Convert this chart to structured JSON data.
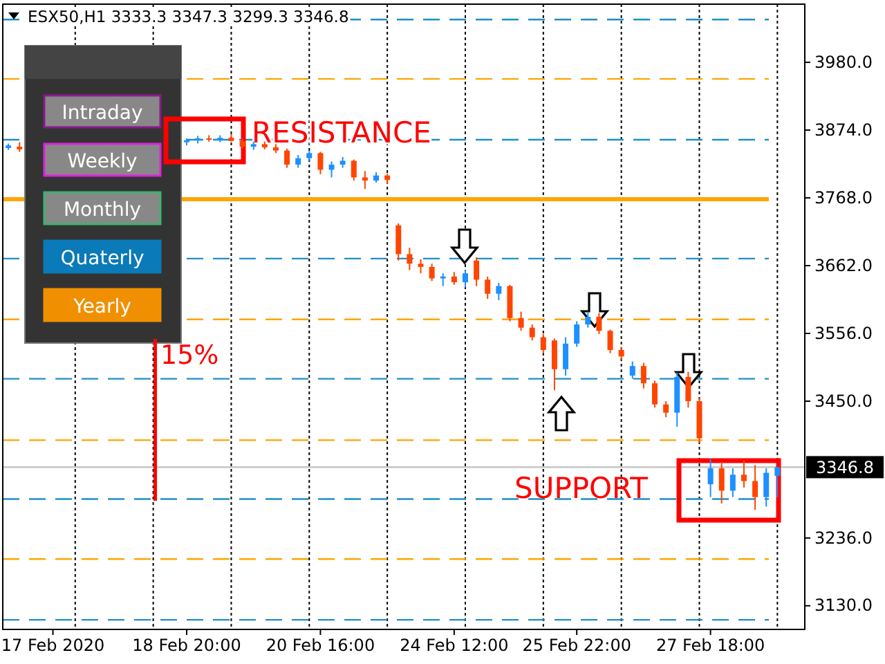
{
  "chart_data": {
    "type": "candlestick",
    "title": "ESX50,H1  3333.3 3347.3 3299.3 3346.8",
    "categories": [
      null,
      null,
      null,
      null,
      "17 Feb 2020",
      null,
      null,
      null,
      null,
      null,
      null,
      null,
      null,
      null,
      null,
      null,
      "18 Feb 20:00",
      null,
      null,
      null,
      null,
      null,
      null,
      null,
      null,
      null,
      null,
      null,
      "20 Feb 16:00",
      null,
      null,
      null,
      null,
      null,
      null,
      null,
      null,
      null,
      null,
      null,
      "24 Feb 12:00",
      null,
      null,
      null,
      null,
      null,
      null,
      null,
      null,
      null,
      null,
      "25 Feb 22:00",
      null,
      null,
      null,
      null,
      null,
      null,
      null,
      null,
      null,
      null,
      null,
      "27 Feb 18:00",
      null,
      null,
      null,
      null,
      null,
      null
    ],
    "ohlc": [
      [
        3846,
        3853,
        3843,
        3850
      ],
      [
        3848,
        3855,
        3840,
        3844
      ],
      null,
      null,
      null,
      null,
      null,
      null,
      null,
      null,
      null,
      null,
      null,
      null,
      null,
      null,
      [
        3855,
        3861,
        3850,
        3858
      ],
      [
        3858,
        3865,
        3853,
        3861
      ],
      [
        3861,
        3866,
        3856,
        3859
      ],
      [
        3859,
        3866,
        3855,
        3862
      ],
      [
        3862,
        3868,
        3856,
        3857
      ],
      [
        3857,
        3860,
        3845,
        3848
      ],
      [
        3848,
        3856,
        3843,
        3852
      ],
      [
        3852,
        3856,
        3844,
        3847
      ],
      [
        3847,
        3852,
        3838,
        3842
      ],
      [
        3842,
        3845,
        3815,
        3820
      ],
      [
        3820,
        3835,
        3815,
        3830
      ],
      [
        3830,
        3842,
        3826,
        3838
      ],
      [
        3838,
        3840,
        3805,
        3812
      ],
      [
        3812,
        3825,
        3800,
        3820
      ],
      [
        3820,
        3832,
        3815,
        3826
      ],
      [
        3826,
        3828,
        3795,
        3800
      ],
      [
        3800,
        3810,
        3782,
        3795
      ],
      [
        3795,
        3808,
        3792,
        3803
      ],
      [
        3803,
        3806,
        3790,
        3796
      ],
      [
        3725,
        3728,
        3670,
        3680
      ],
      [
        3680,
        3690,
        3655,
        3665
      ],
      [
        3665,
        3672,
        3650,
        3660
      ],
      [
        3660,
        3665,
        3638,
        3642
      ],
      [
        3642,
        3650,
        3630,
        3645
      ],
      [
        3645,
        3652,
        3632,
        3636
      ],
      [
        3636,
        3655,
        3628,
        3650
      ],
      [
        3670,
        3675,
        3630,
        3640
      ],
      [
        3640,
        3645,
        3610,
        3618
      ],
      [
        3618,
        3635,
        3608,
        3630
      ],
      [
        3630,
        3632,
        3575,
        3580
      ],
      [
        3580,
        3590,
        3560,
        3565
      ],
      [
        3565,
        3570,
        3545,
        3550
      ],
      [
        3550,
        3555,
        3525,
        3530
      ],
      [
        3545,
        3548,
        3467,
        3500
      ],
      [
        3500,
        3550,
        3490,
        3540
      ],
      [
        3540,
        3575,
        3535,
        3570
      ],
      [
        3570,
        3590,
        3565,
        3582
      ],
      [
        3582,
        3588,
        3555,
        3560
      ],
      [
        3560,
        3562,
        3525,
        3530
      ],
      [
        3530,
        3535,
        3515,
        3520
      ],
      [
        3490,
        3512,
        3485,
        3505
      ],
      [
        3505,
        3510,
        3470,
        3478
      ],
      [
        3478,
        3482,
        3440,
        3445
      ],
      [
        3445,
        3450,
        3425,
        3432
      ],
      [
        3432,
        3495,
        3410,
        3488
      ],
      [
        3488,
        3496,
        3440,
        3450
      ],
      [
        3450,
        3455,
        3385,
        3392
      ],
      [
        3320,
        3360,
        3300,
        3345
      ],
      [
        3345,
        3355,
        3290,
        3310
      ],
      [
        3310,
        3345,
        3300,
        3335
      ],
      [
        3335,
        3358,
        3315,
        3325
      ],
      [
        3325,
        3350,
        3280,
        3300
      ],
      [
        3300,
        3345,
        3285,
        3338
      ],
      [
        3333.3,
        3347.3,
        3299.3,
        3346.8
      ]
    ],
    "colors": [
      "#1e90ff",
      "#ff4500",
      null,
      null,
      null,
      null,
      null,
      null,
      null,
      null,
      null,
      null,
      null,
      null,
      null,
      null,
      "#1e90ff",
      "#1e90ff",
      "#ff4500",
      "#1e90ff",
      "#ff4500",
      "#ff4500",
      "#1e90ff",
      "#ff4500",
      "#ff4500",
      "#ff4500",
      "#1e90ff",
      "#1e90ff",
      "#ff4500",
      "#1e90ff",
      "#1e90ff",
      "#ff4500",
      "#ff4500",
      "#1e90ff",
      "#ff4500",
      "#ff4500",
      "#ff4500",
      "#ff4500",
      "#ff4500",
      "#1e90ff",
      "#ff4500",
      "#1e90ff",
      "#ff4500",
      "#ff4500",
      "#1e90ff",
      "#ff4500",
      "#ff4500",
      "#ff4500",
      "#ff4500",
      "#ff4500",
      "#1e90ff",
      "#1e90ff",
      "#1e90ff",
      "#ff4500",
      "#ff4500",
      "#ff4500",
      "#1e90ff",
      "#ff4500",
      "#ff4500",
      "#ff4500",
      "#1e90ff",
      "#ff4500",
      "#ff4500",
      "#1e90ff",
      "#ff4500",
      "#1e90ff",
      "#ff4500",
      "#ff4500",
      "#1e90ff",
      "#1e90ff"
    ],
    "ylim": [
      3093,
      4071
    ],
    "yticks": [
      {
        "value": 3130,
        "label": "3130.0"
      },
      {
        "value": 3236,
        "label": "3236.0"
      },
      {
        "value": 3450,
        "label": "3450.0"
      },
      {
        "value": 3556,
        "label": "3556.0"
      },
      {
        "value": 3662,
        "label": "3662.0"
      },
      {
        "value": 3768,
        "label": "3768.0"
      },
      {
        "value": 3874,
        "label": "3874.0"
      },
      {
        "value": 3980,
        "label": "3980.0"
      }
    ],
    "grid": "x",
    "ref_lines": [
      {
        "axis": "y",
        "value": 4047,
        "color": "#1e8fc8",
        "line_style": "dashed"
      },
      {
        "axis": "y",
        "value": 3954,
        "color": "#ffa500",
        "line_style": "dashed"
      },
      {
        "axis": "y",
        "value": 3859,
        "color": "#1e8fc8",
        "line_style": "dashed"
      },
      {
        "axis": "y",
        "value": 3766,
        "color": "#ffa500",
        "line_style": "solid"
      },
      {
        "axis": "y",
        "value": 3673,
        "color": "#1e8fc8",
        "line_style": "dashed"
      },
      {
        "axis": "y",
        "value": 3578,
        "color": "#ffa500",
        "line_style": "dashed"
      },
      {
        "axis": "y",
        "value": 3485,
        "color": "#1e8fc8",
        "line_style": "dashed"
      },
      {
        "axis": "y",
        "value": 3389,
        "color": "#ffa500",
        "line_style": "dashed"
      },
      {
        "axis": "y",
        "value": 3346.8,
        "label": "3346.8",
        "color": "#c0c0c0",
        "line_style": "solid"
      },
      {
        "axis": "y",
        "value": 3297,
        "color": "#1e8fc8",
        "line_style": "dashed"
      },
      {
        "axis": "y",
        "value": 3203,
        "color": "#ffa500",
        "line_style": "dashed"
      },
      {
        "axis": "y",
        "value": 3108,
        "color": "#1e8fc8",
        "line_style": "dashed"
      }
    ],
    "annotations": [
      "RESISTANCE",
      "SUPPORT",
      "15%",
      "Intraday",
      "Weekly",
      "Monthly",
      "Quaterly",
      "Yearly"
    ]
  }
}
